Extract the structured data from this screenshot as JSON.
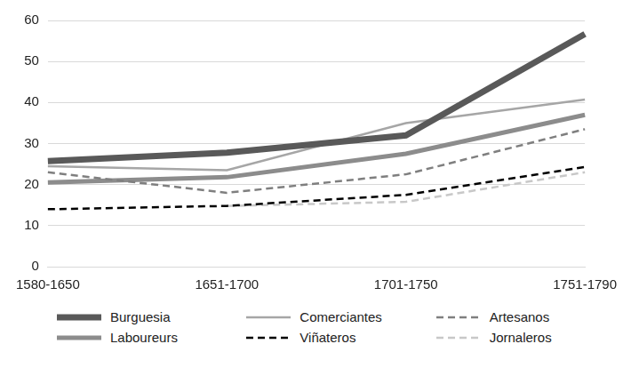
{
  "chart_data": {
    "type": "line",
    "categories": [
      "1580-1650",
      "1651-1700",
      "1701-1750",
      "1751-1790"
    ],
    "series": [
      {
        "name": "Burguesia",
        "color": "#595959",
        "line_style": "solid",
        "values": [
          25.7,
          27.8,
          32,
          56.7
        ]
      },
      {
        "name": "Comerciantes",
        "color": "#a6a6a6",
        "line_style": "solid",
        "values": [
          24.5,
          23.5,
          35,
          40.7
        ]
      },
      {
        "name": "Artesanos",
        "color": "#7f7f7f",
        "line_style": "dashed",
        "values": [
          23,
          18,
          22.5,
          33.5
        ]
      },
      {
        "name": "Laboureurs",
        "color": "#8c8c8c",
        "line_style": "solid",
        "values": [
          20.5,
          21.8,
          27.5,
          37
        ]
      },
      {
        "name": "Viñateros",
        "color": "#000000",
        "line_style": "dashed",
        "values": [
          14,
          14.8,
          17.5,
          24.3
        ]
      },
      {
        "name": "Jornaleros",
        "color": "#c8c8c8",
        "line_style": "dashed",
        "values": [
          null,
          14.8,
          15.8,
          23
        ]
      }
    ],
    "ylim": [
      0,
      60
    ],
    "yticks": [
      0,
      10,
      20,
      30,
      40,
      50,
      60
    ],
    "grid": true,
    "legend": "bottom"
  }
}
